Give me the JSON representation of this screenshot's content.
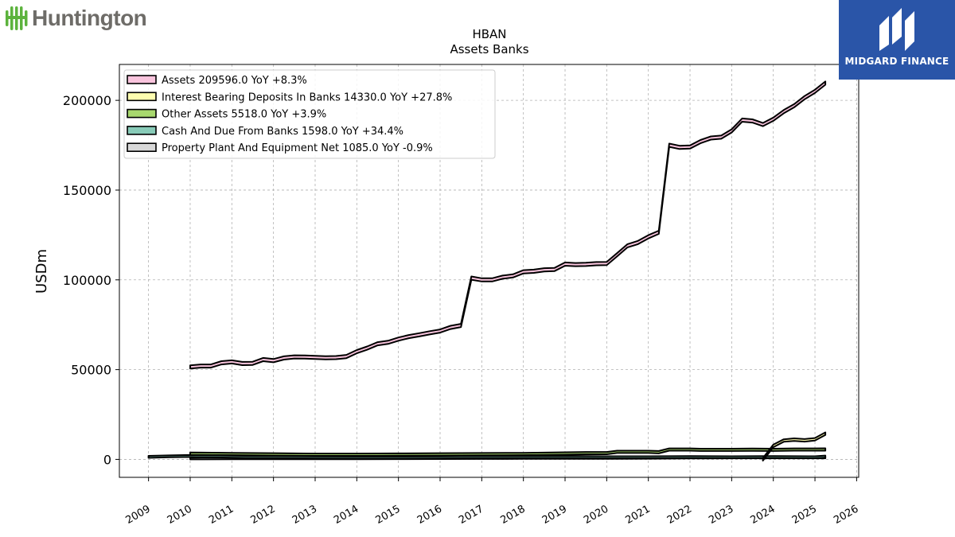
{
  "brand": {
    "name": "Huntington",
    "logo_icon": "huntington-leaf-icon",
    "logo_color": "#5cb33d"
  },
  "partner": {
    "name": "MIDGARD FINANCE",
    "icon": "midgard-m-icon",
    "bg_color": "#2a55a8"
  },
  "chart_data": {
    "type": "area",
    "title": "HBAN",
    "subtitle": "Assets Banks",
    "xlabel": "",
    "ylabel": "USDm",
    "xlim": [
      2008.3,
      2026.05
    ],
    "ylim": [
      -10000,
      220000
    ],
    "x_ticks": [
      2009,
      2010,
      2011,
      2012,
      2013,
      2014,
      2015,
      2016,
      2017,
      2018,
      2019,
      2020,
      2021,
      2022,
      2023,
      2024,
      2025,
      2026
    ],
    "y_ticks": [
      0,
      50000,
      100000,
      150000,
      200000
    ],
    "grid": true,
    "legend_position": "top-left",
    "series": [
      {
        "name": "Assets",
        "legend_label": "Assets  209596.0 YoY +8.3%",
        "color": "#f9c4dd",
        "x": [
          2010.0,
          2010.25,
          2010.5,
          2010.75,
          2011.0,
          2011.25,
          2011.5,
          2011.75,
          2012.0,
          2012.25,
          2012.5,
          2012.75,
          2013.0,
          2013.25,
          2013.5,
          2013.75,
          2014.0,
          2014.25,
          2014.5,
          2014.75,
          2015.0,
          2015.25,
          2015.5,
          2015.75,
          2016.0,
          2016.25,
          2016.5,
          2016.75,
          2017.0,
          2017.25,
          2017.5,
          2017.75,
          2018.0,
          2018.25,
          2018.5,
          2018.75,
          2019.0,
          2019.25,
          2019.5,
          2019.75,
          2020.0,
          2020.25,
          2020.5,
          2020.75,
          2021.0,
          2021.25,
          2021.5,
          2021.75,
          2022.0,
          2022.25,
          2022.5,
          2022.75,
          2023.0,
          2023.25,
          2023.5,
          2023.75,
          2024.0,
          2024.25,
          2024.5,
          2024.75,
          2025.0,
          2025.25
        ],
        "values": [
          51500,
          52000,
          52000,
          53800,
          54300,
          53400,
          53500,
          55600,
          55000,
          56500,
          57100,
          57000,
          56800,
          56600,
          56700,
          57300,
          60000,
          62000,
          64400,
          65200,
          67000,
          68400,
          69400,
          70500,
          71500,
          73500,
          74600,
          101000,
          100000,
          100000,
          101500,
          102200,
          104500,
          104800,
          105600,
          105800,
          108800,
          108500,
          108600,
          109000,
          109100,
          114000,
          119000,
          120800,
          124000,
          126500,
          175000,
          173800,
          174000,
          177000,
          179000,
          179500,
          183000,
          189000,
          188500,
          186500,
          189500,
          193700,
          197000,
          201500,
          205000,
          209596
        ]
      },
      {
        "name": "Interest Bearing Deposits In Banks",
        "legend_label": "Interest Bearing Deposits In Banks  14330.0 YoY +27.8%",
        "color": "#fdfdb0",
        "x": [
          2023.75,
          2024.0,
          2024.25,
          2024.5,
          2024.75,
          2025.0,
          2025.25
        ],
        "values": [
          0,
          7500,
          10500,
          11000,
          10600,
          11200,
          14330
        ]
      },
      {
        "name": "Other Assets",
        "legend_label": "Other Assets  5518.0 YoY +3.9%",
        "color": "#a8d86e",
        "x": [
          2010.0,
          2011.0,
          2012.0,
          2013.0,
          2014.0,
          2015.0,
          2016.0,
          2017.0,
          2018.0,
          2019.0,
          2019.5,
          2020.0,
          2020.25,
          2020.5,
          2021.0,
          2021.25,
          2021.5,
          2022.0,
          2022.25,
          2022.5,
          2023.0,
          2023.5,
          2024.0,
          2024.5,
          2025.0,
          2025.25
        ],
        "values": [
          3200,
          3000,
          2800,
          2600,
          2600,
          2700,
          2800,
          2900,
          3000,
          3300,
          3500,
          3500,
          4200,
          4200,
          4200,
          4000,
          5500,
          5500,
          5300,
          5300,
          5300,
          5400,
          5300,
          5500,
          5500,
          5518
        ]
      },
      {
        "name": "Cash And Due From Banks",
        "legend_label": "Cash And Due From Banks  1598.0 YoY +34.4%",
        "color": "#88cbb8",
        "x": [
          2009.0,
          2009.5,
          2010.0,
          2011.0,
          2012.0,
          2013.0,
          2014.0,
          2015.0,
          2016.0,
          2017.0,
          2018.0,
          2019.0,
          2020.0,
          2021.0,
          2022.0,
          2023.0,
          2024.0,
          2025.0,
          2025.25
        ],
        "values": [
          1400,
          1700,
          1900,
          1500,
          1200,
          1100,
          1000,
          1000,
          1100,
          1300,
          1300,
          1400,
          1200,
          1200,
          1300,
          1200,
          1300,
          1200,
          1598
        ]
      },
      {
        "name": "Property Plant And Equipment Net",
        "legend_label": "Property Plant And Equipment Net  1085.0 YoY -0.9%",
        "color": "#d8d8d8",
        "x": [
          2010.0,
          2011.0,
          2012.0,
          2013.0,
          2014.0,
          2015.0,
          2016.0,
          2017.0,
          2018.0,
          2019.0,
          2020.0,
          2021.0,
          2022.0,
          2023.0,
          2024.0,
          2025.0,
          2025.25
        ],
        "values": [
          500,
          550,
          580,
          600,
          620,
          650,
          700,
          750,
          800,
          800,
          820,
          850,
          1000,
          1100,
          1100,
          1090,
          1085
        ]
      }
    ]
  }
}
